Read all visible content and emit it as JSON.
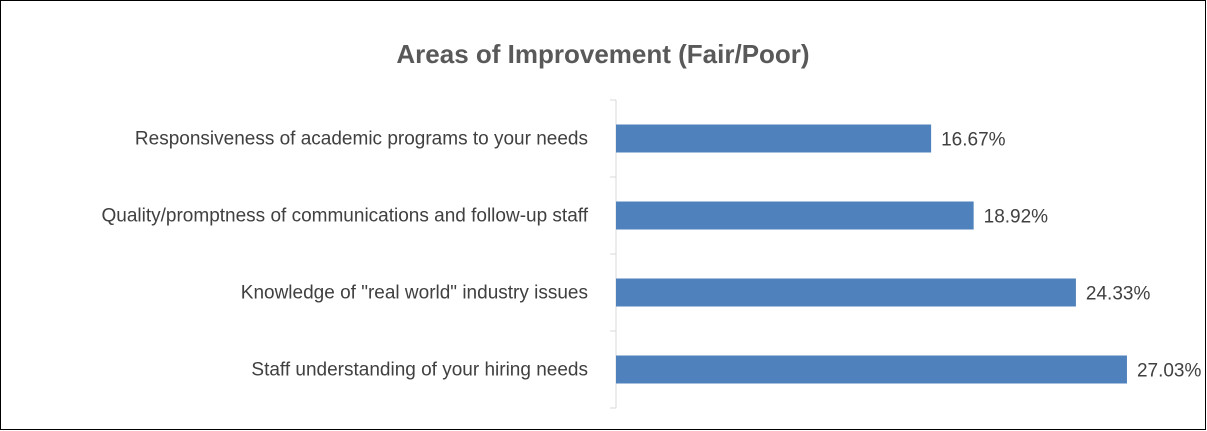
{
  "chart_data": {
    "type": "barh",
    "title": "Areas of Improvement (Fair/Poor)",
    "categories": [
      "Responsiveness of academic programs to your needs",
      "Quality/promptness of communications and follow-up staff",
      "Knowledge of \"real world\" industry issues",
      "Staff understanding of your hiring needs"
    ],
    "values": [
      16.67,
      18.92,
      24.33,
      27.03
    ],
    "value_labels": [
      "16.67%",
      "18.92%",
      "24.33%",
      "27.03%"
    ],
    "color": "#4f81bd",
    "xlim": [
      0,
      31
    ]
  }
}
